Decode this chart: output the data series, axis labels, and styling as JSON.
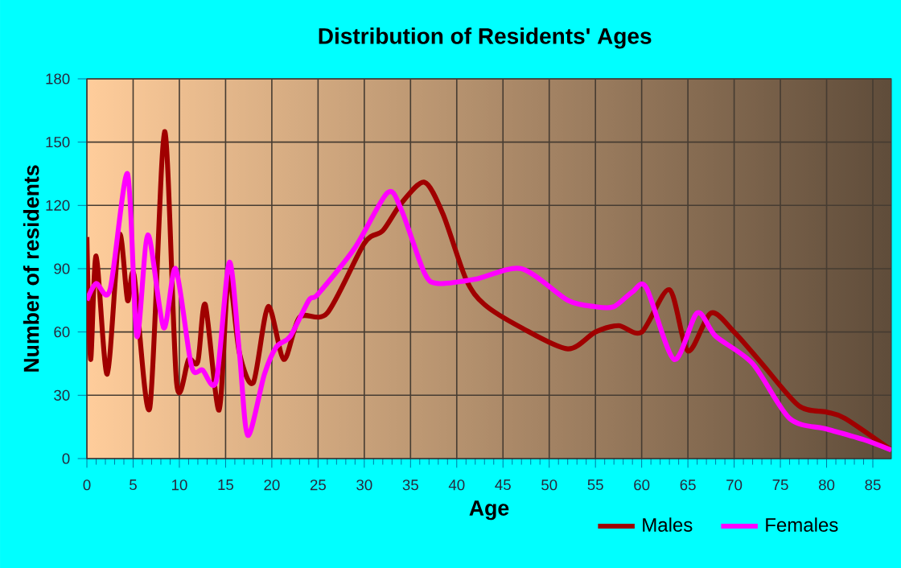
{
  "chart_data": {
    "type": "line",
    "title": "Distribution of Residents' Ages",
    "xlabel": "Age",
    "ylabel": "Number of residents",
    "xlim": [
      0,
      87
    ],
    "xticks": [
      0,
      5,
      10,
      15,
      20,
      25,
      30,
      35,
      40,
      45,
      50,
      55,
      60,
      65,
      70,
      75,
      80,
      85
    ],
    "ylim": [
      0,
      180
    ],
    "yticks": [
      0,
      30,
      60,
      90,
      120,
      150,
      180
    ],
    "grid": true,
    "legend": "bottom",
    "marker": "none",
    "line_style": "solid",
    "series": [
      {
        "name": "Males",
        "color": "#a00000",
        "x": [
          0,
          0.4,
          1,
          2.2,
          3.5,
          4.4,
          5.1,
          6.8,
          8.4,
          9.7,
          11,
          12,
          12.8,
          14.3,
          15.3,
          16.5,
          18,
          19.6,
          21.3,
          23,
          26,
          30,
          32,
          34,
          36.5,
          38.5,
          41,
          43,
          47,
          52,
          55,
          57.5,
          60,
          63,
          65,
          67.5,
          70,
          73,
          77,
          80,
          82,
          87
        ],
        "values": [
          105,
          47,
          96,
          40,
          106,
          75,
          87,
          24,
          155,
          36,
          47,
          46,
          73,
          23,
          86,
          50,
          36,
          72,
          47,
          67,
          69,
          102,
          108,
          121,
          131,
          116,
          85,
          73,
          62,
          52,
          60,
          63,
          60,
          80,
          51,
          69,
          60,
          45,
          25,
          22,
          19,
          4
        ]
      },
      {
        "name": "Females",
        "color": "#ff00ff",
        "x": [
          0,
          1,
          2.5,
          4.4,
          5.4,
          6.6,
          8.3,
          9.6,
          11.3,
          12.5,
          14,
          15.4,
          16.5,
          17.4,
          19.2,
          20.5,
          22,
          24,
          25,
          29,
          32.5,
          34,
          36.5,
          38,
          42,
          47,
          52,
          55,
          57,
          59,
          60.5,
          63.5,
          66,
          68,
          72,
          76,
          80,
          84,
          87
        ],
        "values": [
          75,
          83,
          80,
          135,
          58,
          106,
          62,
          90,
          44,
          42,
          37,
          93,
          50,
          11,
          40,
          53,
          58,
          75,
          78,
          100,
          126,
          118,
          88,
          83,
          85,
          90,
          75,
          72,
          72,
          79,
          81,
          47,
          69,
          58,
          45,
          19,
          14,
          9,
          4
        ]
      }
    ]
  }
}
